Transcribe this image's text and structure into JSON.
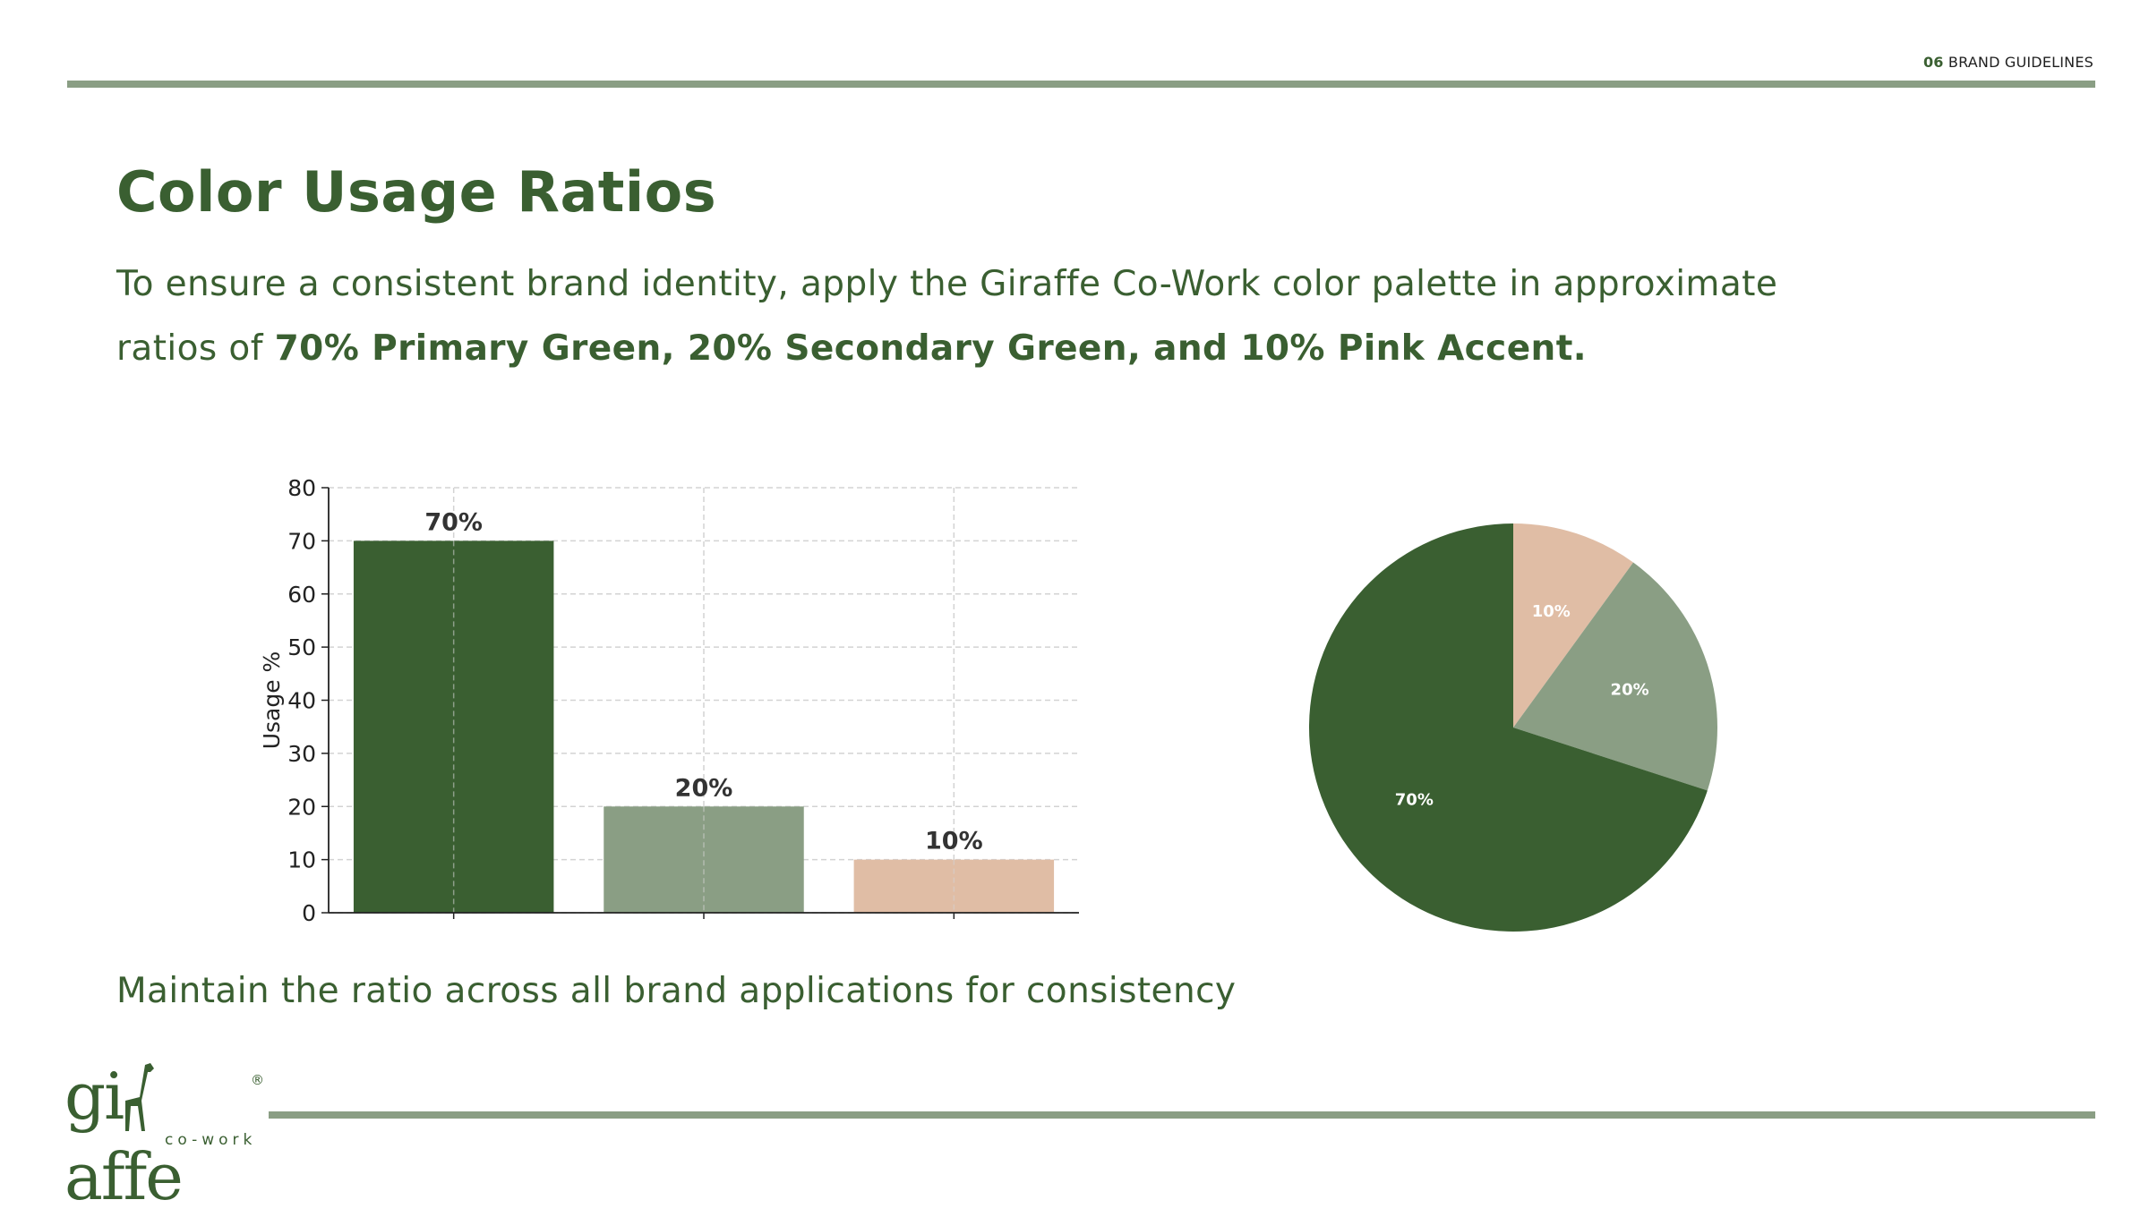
{
  "header": {
    "section_number": "06",
    "section_title": "BRAND GUIDELINES"
  },
  "slide": {
    "title": "Color Usage Ratios",
    "intro_plain": "To ensure a consistent brand identity, apply the Giraffe Co-Work color palette in approximate ratios of ",
    "intro_bold": "70% Primary Green, 20% Secondary Green, and 10% Pink Accent.",
    "footer_note": "Maintain the ratio across all brand applications for consistency"
  },
  "logo": {
    "wordmark": "giraffe",
    "tagline": "co-work",
    "registered": "®"
  },
  "colors": {
    "primary_green": "#3a5f31",
    "secondary_green": "#8a9e84",
    "pink_accent": "#e0bda5",
    "axis_text": "#222222",
    "label_text": "#333333"
  },
  "chart_data": [
    {
      "type": "bar",
      "categories": [
        "",
        "",
        ""
      ],
      "values": [
        70,
        20,
        10
      ],
      "value_labels": [
        "70%",
        "20%",
        "10%"
      ],
      "colors": [
        "#3a5f31",
        "#8a9e84",
        "#e0bda5"
      ],
      "ylabel": "Usage %",
      "ylim": [
        0,
        80
      ],
      "yticks": [
        0,
        10,
        20,
        30,
        40,
        50,
        60,
        70,
        80
      ],
      "grid": true
    },
    {
      "type": "pie",
      "values": [
        10,
        20,
        70
      ],
      "labels": [
        "10%",
        "20%",
        "70%"
      ],
      "colors": [
        "#e0bda5",
        "#8a9e84",
        "#3a5f31"
      ],
      "start_angle": "top",
      "direction": "clockwise"
    }
  ]
}
